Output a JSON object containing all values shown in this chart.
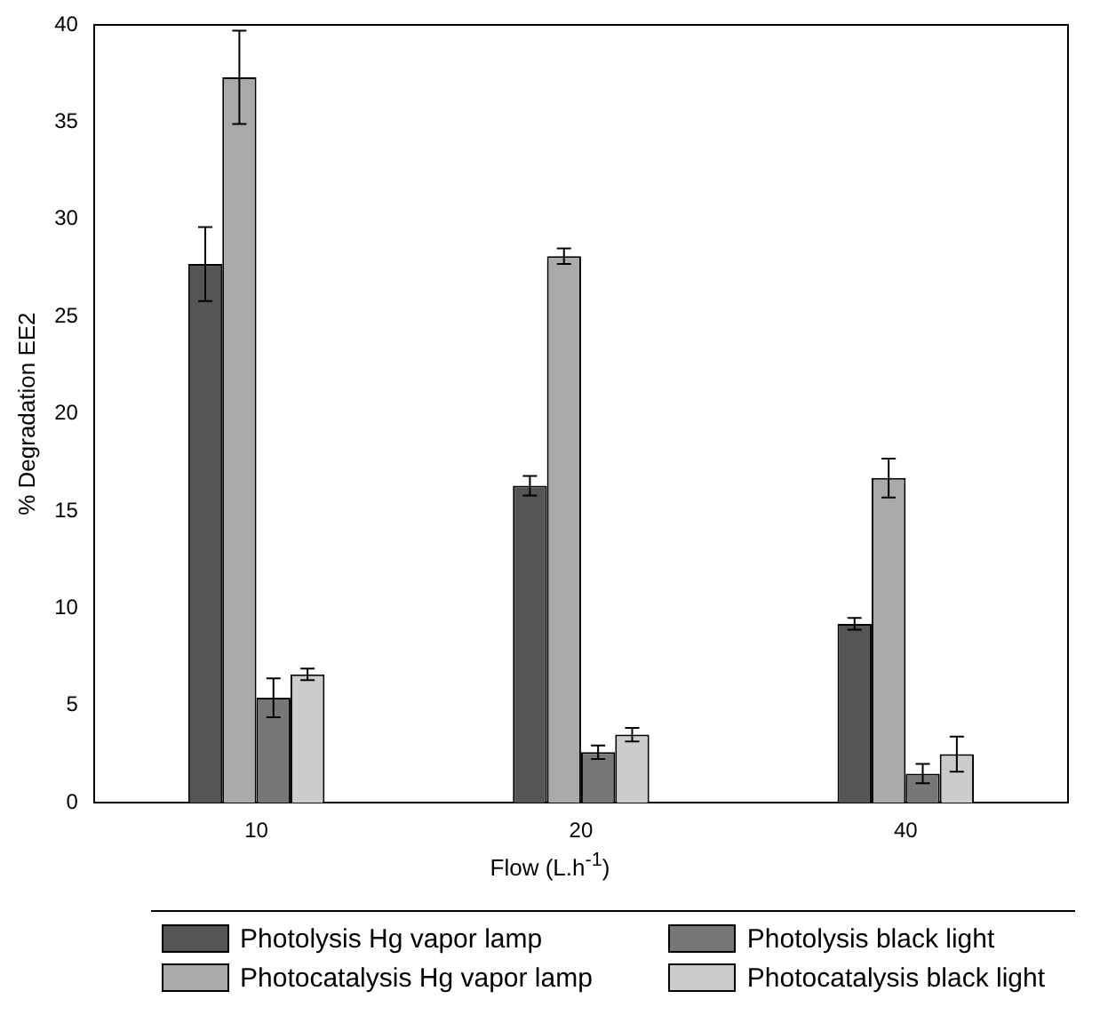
{
  "chart_data": {
    "type": "bar",
    "xlabel": "Flow (L.h$^{-1}$)",
    "ylabel": "% Degradation EE2",
    "categories": [
      "10",
      "20",
      "40"
    ],
    "series": [
      {
        "name": "Photolysis Hg vapor lamp",
        "color": "#555555",
        "values": [
          27.7,
          16.3,
          9.2
        ],
        "errors": [
          1.9,
          0.5,
          0.3
        ]
      },
      {
        "name": "Photocatalysis Hg vapor lamp",
        "color": "#aaaaaa",
        "values": [
          37.3,
          28.1,
          16.7
        ],
        "errors": [
          2.4,
          0.4,
          1.0
        ]
      },
      {
        "name": "Photolysis black light",
        "color": "#777777",
        "values": [
          5.4,
          2.6,
          1.5
        ],
        "errors": [
          1.0,
          0.35,
          0.5
        ]
      },
      {
        "name": "Photocatalysis black light",
        "color": "#cccccc",
        "values": [
          6.6,
          3.5,
          2.5
        ],
        "errors": [
          0.3,
          0.35,
          0.9
        ]
      }
    ],
    "ylim": [
      0,
      40
    ],
    "yticks": [
      0,
      5,
      10,
      15,
      20,
      25,
      30,
      35,
      40
    ],
    "grid": false,
    "legend": "bottom"
  }
}
